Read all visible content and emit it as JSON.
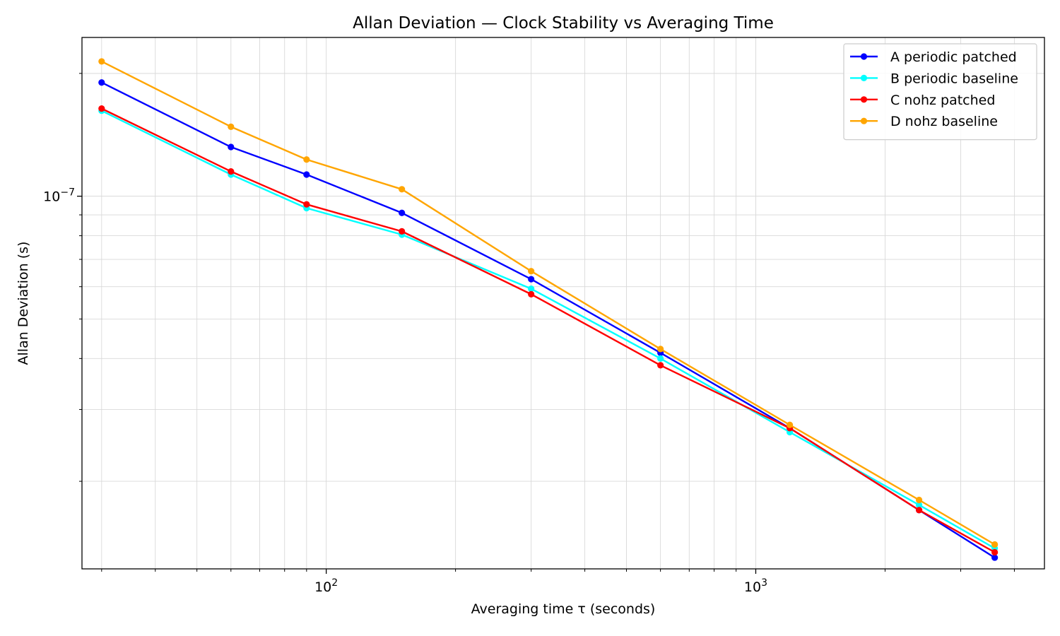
{
  "chart_data": {
    "type": "line",
    "title": "Allan Deviation — Clock Stability vs Averaging Time",
    "xlabel": "Averaging time τ (seconds)",
    "ylabel": "Allan Deviation (s)",
    "xscale": "log",
    "yscale": "log",
    "xlim": [
      27,
      4700
    ],
    "ylim": [
      1.22e-08,
      2.45e-07
    ],
    "x_ticks": [
      {
        "value": 100,
        "base": "10",
        "exp": "2"
      },
      {
        "value": 1000,
        "base": "10",
        "exp": "3"
      }
    ],
    "y_ticks": [
      {
        "value": 1e-07,
        "base": "10",
        "exp": "−7"
      }
    ],
    "grid": true,
    "legend_position": "top-right",
    "x": [
      30,
      60,
      90,
      150,
      300,
      600,
      1200,
      2400,
      3600
    ],
    "series": [
      {
        "name": "A periodic patched",
        "color": "#0000ff",
        "values": [
          1.9e-07,
          1.32e-07,
          1.13e-07,
          9.1e-08,
          6.26e-08,
          4.13e-08,
          2.7e-08,
          1.7e-08,
          1.3e-08
        ]
      },
      {
        "name": "B periodic baseline",
        "color": "#00ffff",
        "values": [
          1.62e-07,
          1.13e-07,
          9.35e-08,
          8.05e-08,
          5.93e-08,
          4e-08,
          2.64e-08,
          1.75e-08,
          1.37e-08
        ]
      },
      {
        "name": "C nohz patched",
        "color": "#ff0000",
        "values": [
          1.64e-07,
          1.15e-07,
          9.55e-08,
          8.2e-08,
          5.75e-08,
          3.85e-08,
          2.7e-08,
          1.7e-08,
          1.34e-08
        ]
      },
      {
        "name": "D nohz baseline",
        "color": "#ffa500",
        "values": [
          2.14e-07,
          1.48e-07,
          1.23e-07,
          1.04e-07,
          6.55e-08,
          4.22e-08,
          2.75e-08,
          1.8e-08,
          1.4e-08
        ]
      }
    ]
  }
}
